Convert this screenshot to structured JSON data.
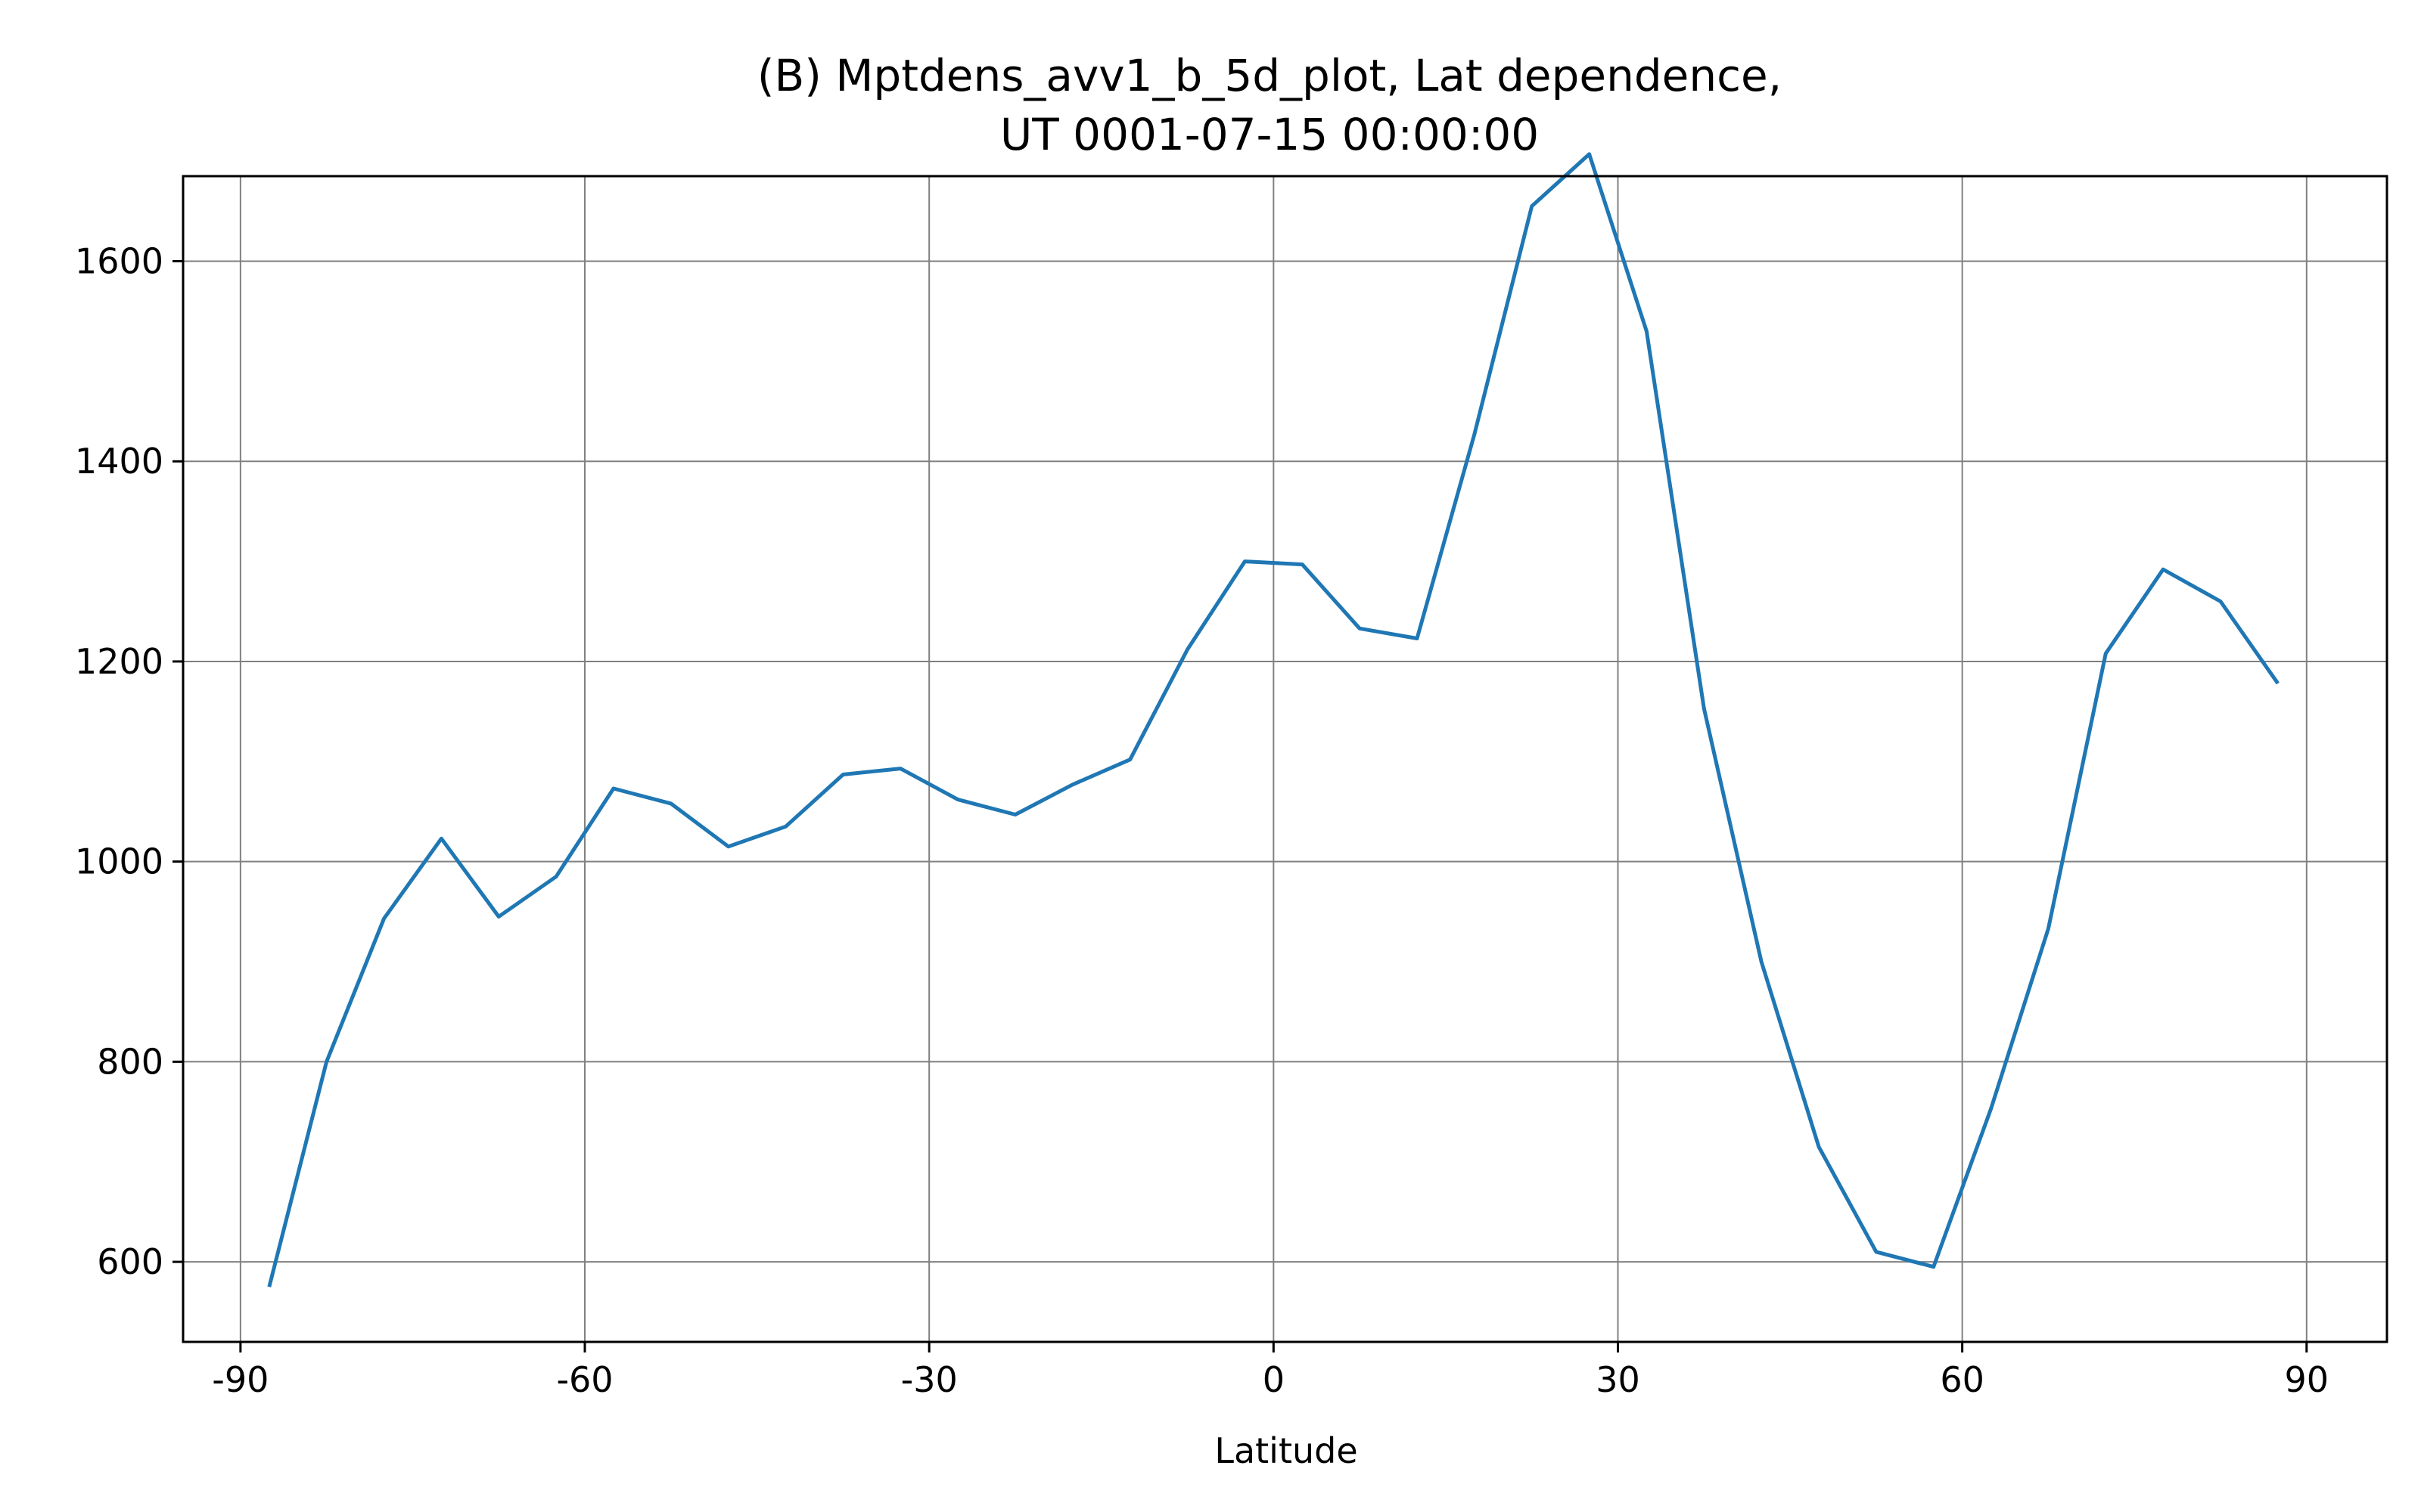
{
  "chart_data": {
    "type": "line",
    "title": [
      "(B) Mptdens_avv1_b_5d_plot, Lat dependence,",
      "UT 0001-07-15 00:00:00"
    ],
    "xlabel": "Latitude",
    "ylabel": "",
    "xlim": [
      -95,
      97
    ],
    "ylim": [
      520,
      1685
    ],
    "grid": true,
    "x_ticks": [
      -90,
      -60,
      -30,
      0,
      30,
      60,
      90
    ],
    "x_tick_labels": [
      "-90",
      "-60",
      "-30",
      "0",
      "30",
      "60",
      "90"
    ],
    "y_ticks": [
      600,
      800,
      1000,
      1200,
      1400,
      1600
    ],
    "y_tick_labels": [
      "600",
      "800",
      "1000",
      "1200",
      "1400",
      "1600"
    ],
    "colors": {
      "line": "#1f77b4",
      "grid": "#808080",
      "axes": "#000000"
    },
    "series": [
      {
        "x": [
          -87.5,
          -82.5,
          -77.5,
          -72.5,
          -67.5,
          -62.5,
          -57.5,
          -52.5,
          -47.5,
          -42.5,
          -37.5,
          -32.5,
          -27.5,
          -22.5,
          -17.5,
          -12.5,
          -7.5,
          -2.5,
          2.5,
          7.5,
          12.5,
          17.5,
          22.5,
          27.5,
          32.5,
          37.5,
          42.5,
          47.5,
          52.5,
          57.5,
          62.5,
          67.5,
          72.5,
          77.5,
          82.5,
          87.5
        ],
        "values": [
          575,
          800,
          943,
          1023,
          945,
          985,
          1073,
          1058,
          1015,
          1035,
          1087,
          1093,
          1062,
          1047,
          1077,
          1102,
          1212,
          1300,
          1297,
          1233,
          1223,
          1427,
          1655,
          1707,
          1530,
          1153,
          900,
          715,
          610,
          595,
          753,
          933,
          1208,
          1292,
          1260,
          1178
        ]
      }
    ]
  }
}
